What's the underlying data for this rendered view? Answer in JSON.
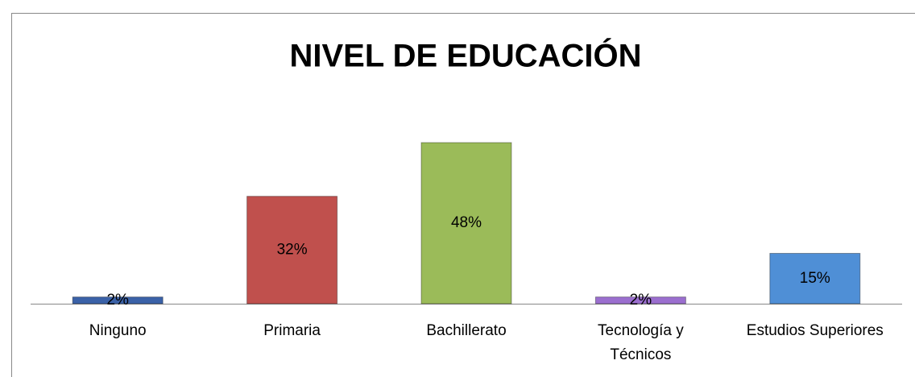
{
  "chart_data": {
    "type": "bar",
    "title": "NIVEL DE EDUCACIÓN",
    "categories": [
      "Ninguno",
      "Primaria",
      "Bachillerato",
      "Tecnología y Técnicos",
      "Estudios Superiores"
    ],
    "values": [
      2,
      32,
      48,
      2,
      15
    ],
    "value_labels": [
      "2%",
      "32%",
      "48%",
      "2%",
      "15%"
    ],
    "colors": [
      "#3b62a8",
      "#c0504d",
      "#9bbb59",
      "#9b6fcf",
      "#4f8fd6"
    ]
  }
}
